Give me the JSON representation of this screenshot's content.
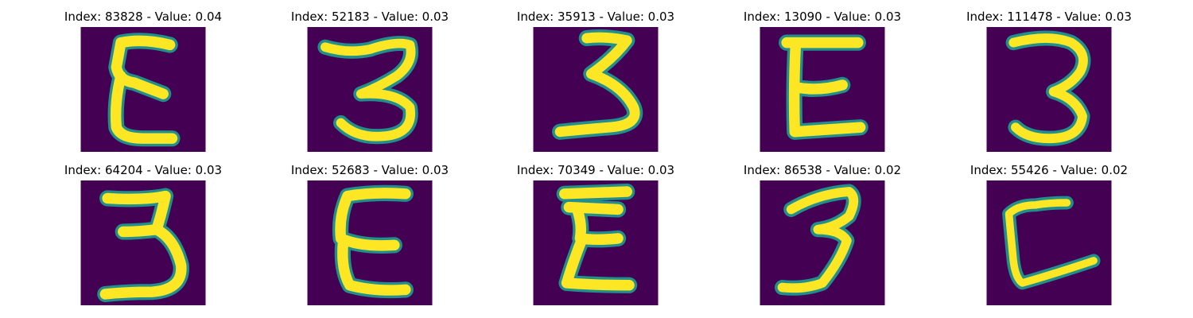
{
  "colors": {
    "background": "#440154",
    "stroke_mid": "#21908d",
    "stroke_core": "#fde725"
  },
  "panels": [
    {
      "title": "Index: 83828 - Value: 0.04",
      "glyph": "E-shape"
    },
    {
      "title": "Index: 52183 - Value: 0.03",
      "glyph": "3-shape"
    },
    {
      "title": "Index: 35913 - Value: 0.03",
      "glyph": "3-shape"
    },
    {
      "title": "Index: 13090 - Value: 0.03",
      "glyph": "E-shape"
    },
    {
      "title": "Index: 111478 - Value: 0.03",
      "glyph": "3-shape"
    },
    {
      "title": "Index: 64204 - Value: 0.03",
      "glyph": "3-shape"
    },
    {
      "title": "Index: 52683 - Value: 0.03",
      "glyph": "E-shape"
    },
    {
      "title": "Index: 70349 - Value: 0.03",
      "glyph": "E-shape"
    },
    {
      "title": "Index: 86538 - Value: 0.02",
      "glyph": "3-shape"
    },
    {
      "title": "Index: 55426 - Value: 0.02",
      "glyph": "L-shape"
    }
  ]
}
